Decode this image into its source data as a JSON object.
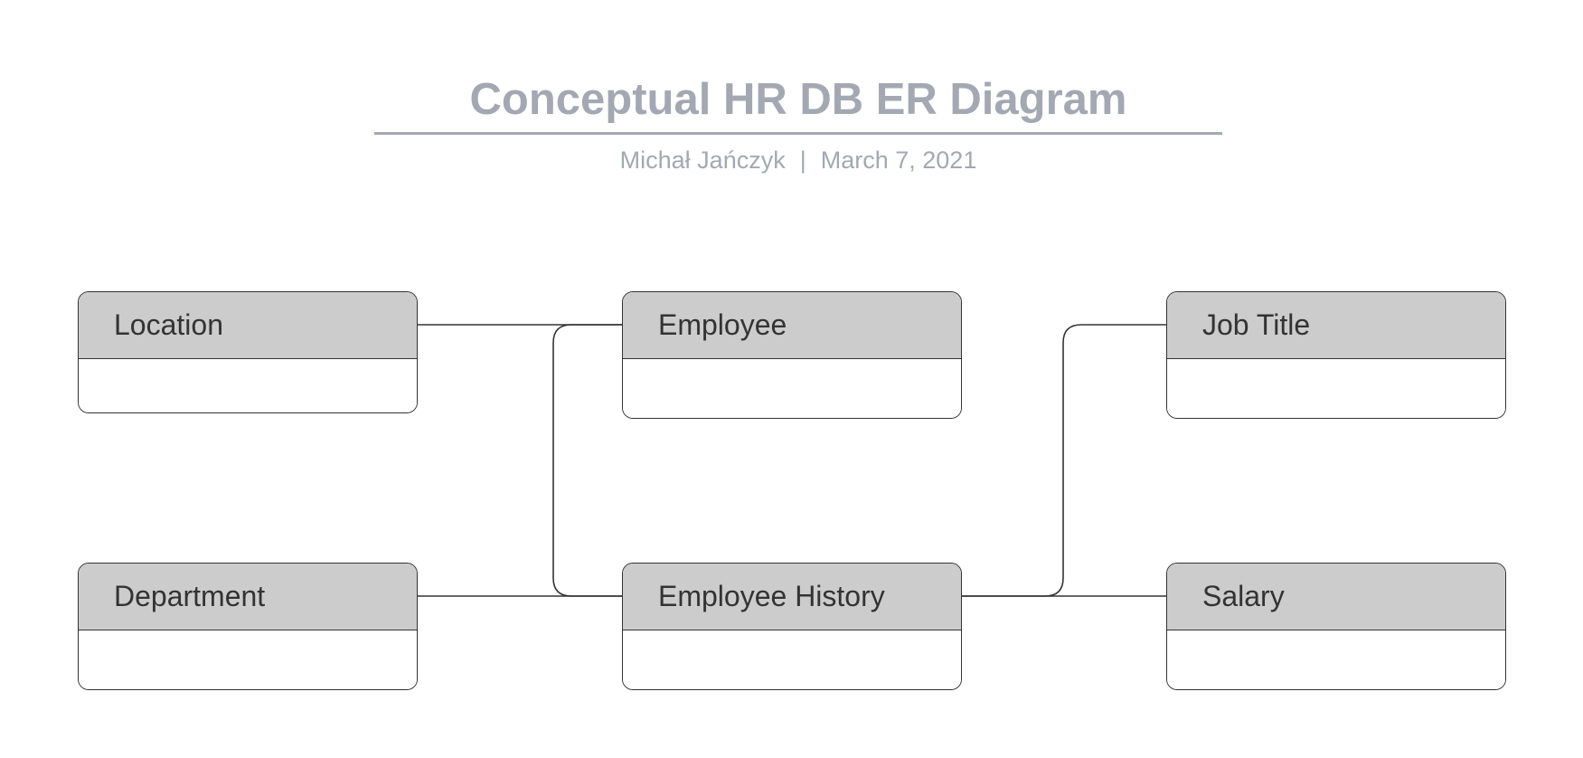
{
  "header": {
    "title": "Conceptual HR DB ER Diagram",
    "author": "Michał Jańczyk",
    "separator": "|",
    "date": "March 7, 2021"
  },
  "entities": {
    "location": {
      "label": "Location"
    },
    "employee": {
      "label": "Employee"
    },
    "job_title": {
      "label": "Job Title"
    },
    "department": {
      "label": "Department"
    },
    "employee_history": {
      "label": "Employee History"
    },
    "salary": {
      "label": "Salary"
    }
  },
  "relationships": [
    {
      "from": "Location",
      "to": "Employee"
    },
    {
      "from": "Employee",
      "to": "Employee History"
    },
    {
      "from": "Department",
      "to": "Employee History"
    },
    {
      "from": "Job Title",
      "to": "Employee History"
    },
    {
      "from": "Employee History",
      "to": "Salary"
    }
  ],
  "colors": {
    "title_text": "#a3a8b3",
    "entity_header_fill": "#cccccc",
    "entity_border": "#333333",
    "connector": "#333333"
  }
}
